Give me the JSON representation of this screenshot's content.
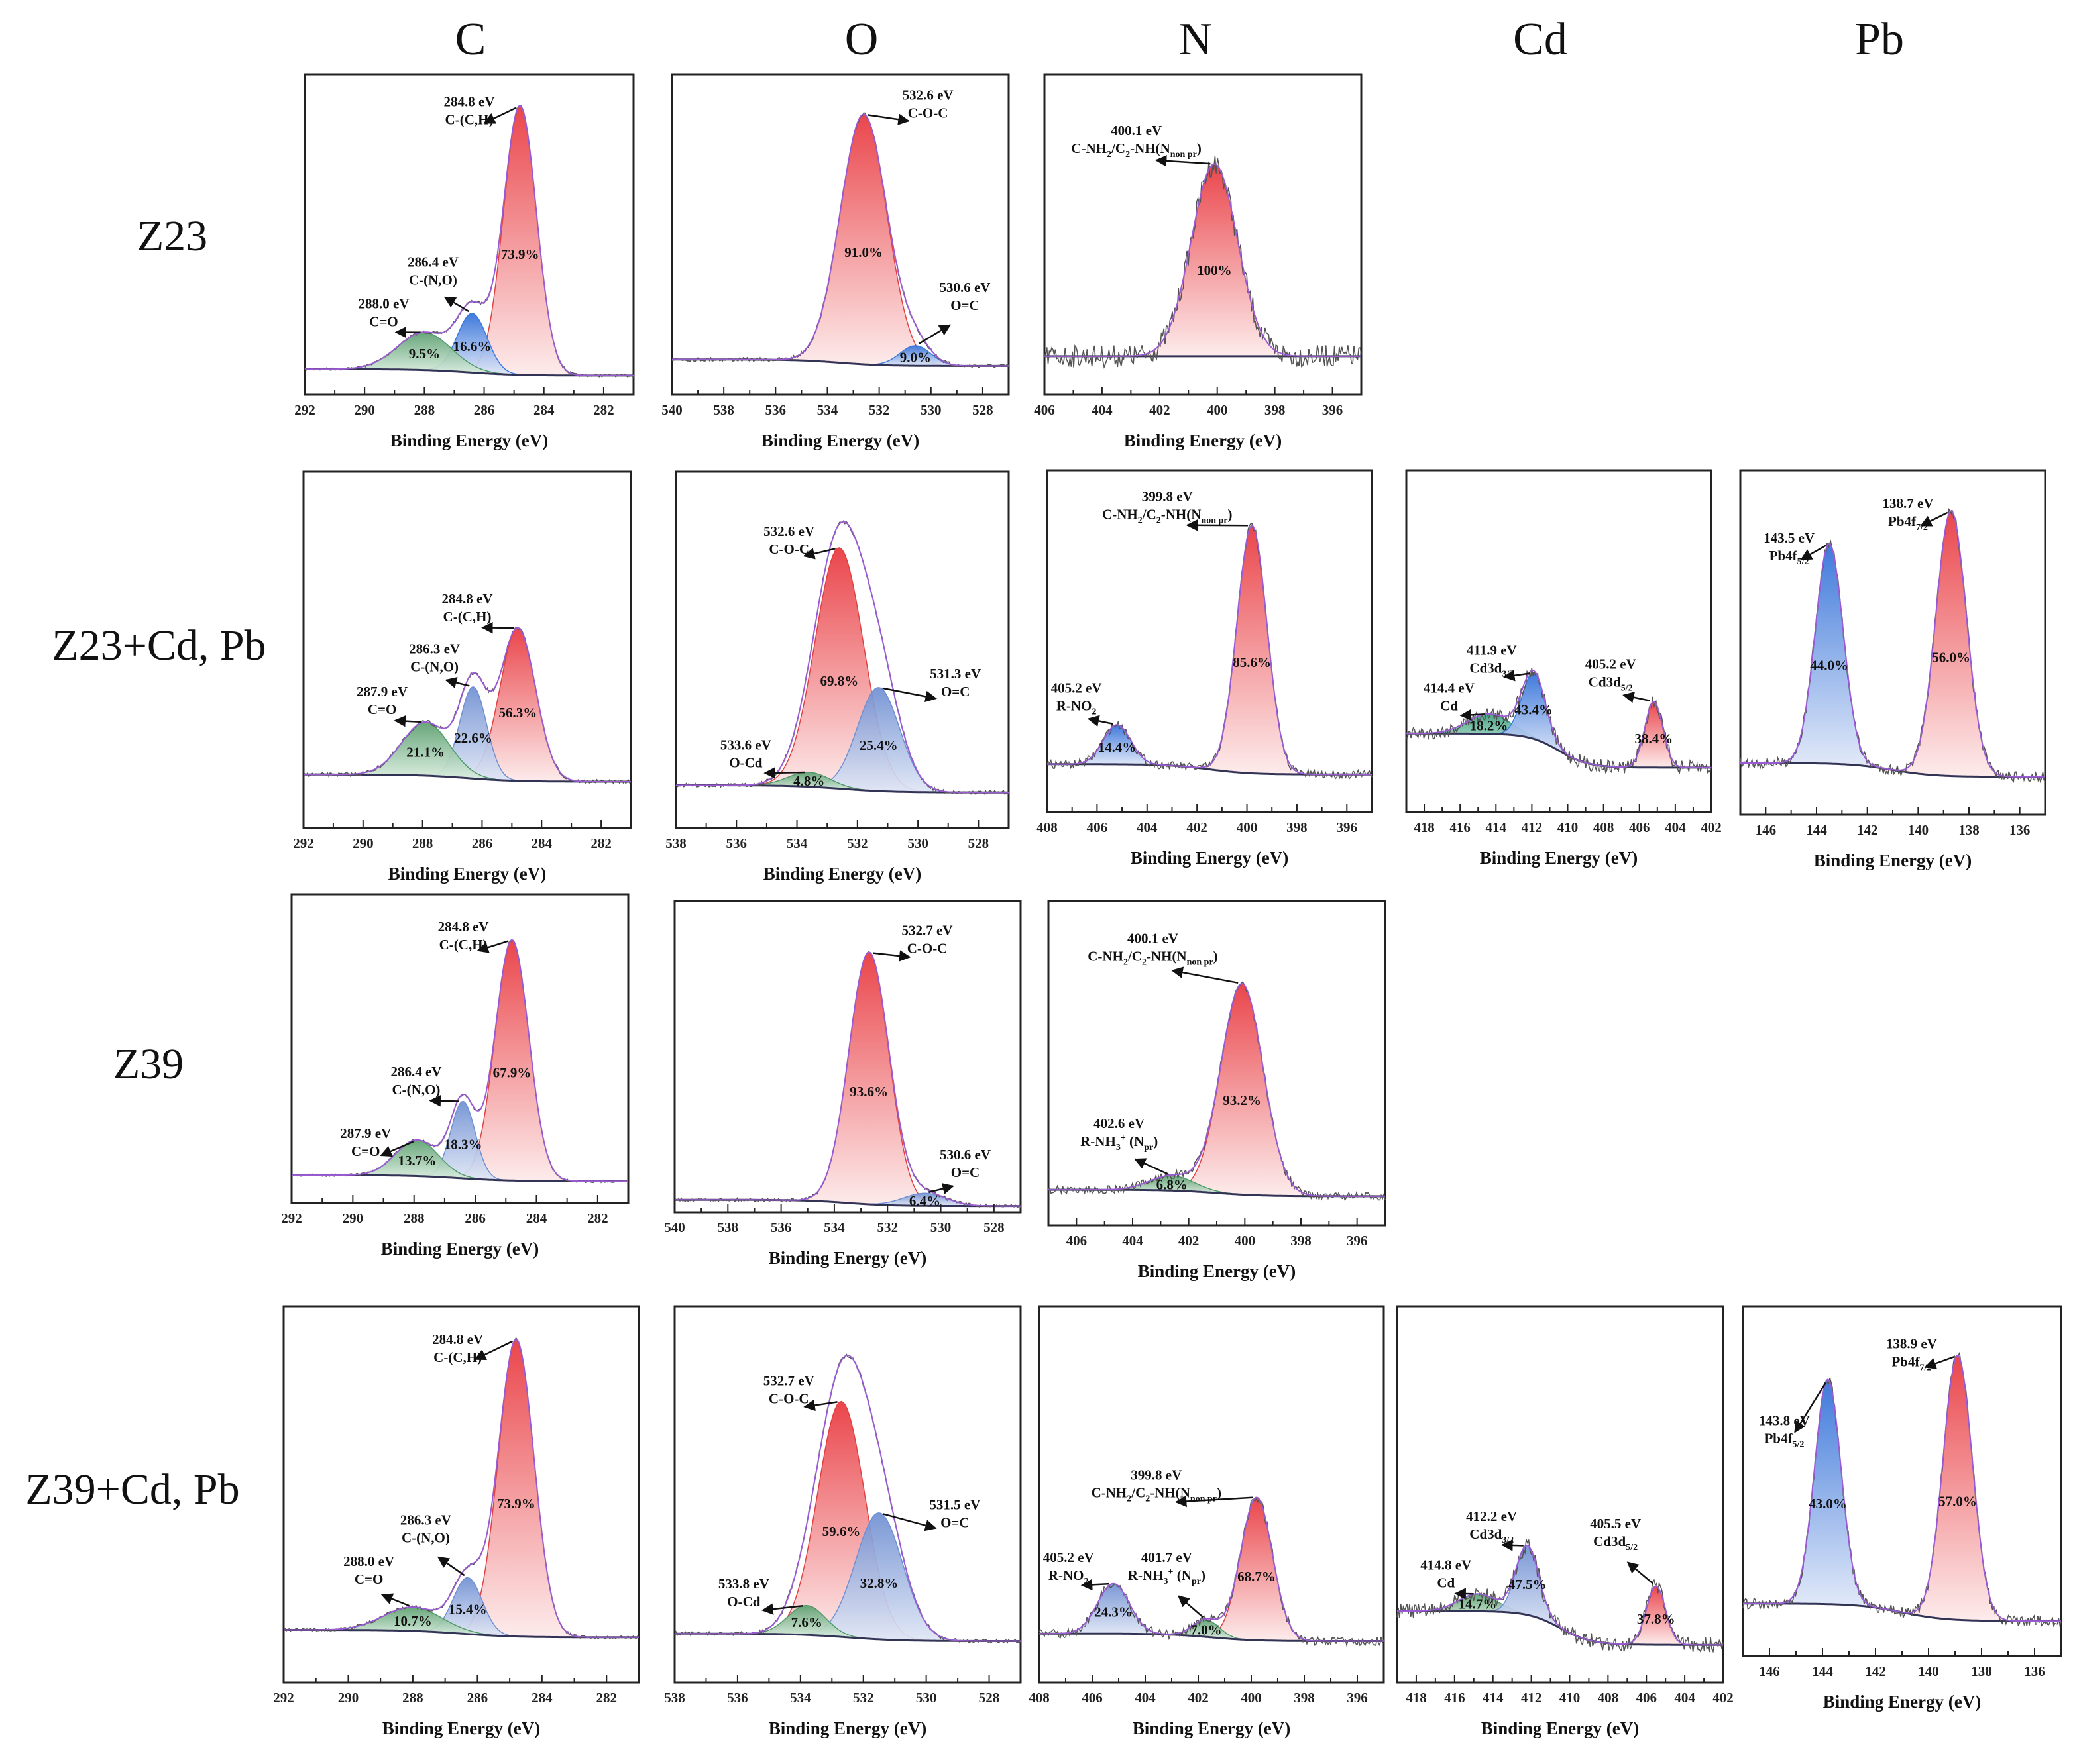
{
  "column_titles": [
    "C",
    "O",
    "N",
    "Cd",
    "Pb"
  ],
  "row_labels": [
    "Z23",
    "Z23+Cd, Pb",
    "Z39",
    "Z39+Cd, Pb"
  ],
  "colors": {
    "red": "#e8363c",
    "blue": "#2f6ed8",
    "lightblue": "#6f8fd2",
    "green": "#5a9e6e",
    "teal": "#3aa07e",
    "envelope": "#9a5bd4",
    "raw": "#555555",
    "background": "#333355"
  },
  "chart_data": [
    {
      "id": "r1C",
      "type": "area",
      "row": "Z23",
      "column": "C",
      "xlabel": "Binding Energy (eV)",
      "xlim": [
        292,
        281
      ],
      "peaks": [
        {
          "center": 284.8,
          "be_label": "284.8 eV",
          "assignment": "C-(C,H)",
          "percent": "73.9%",
          "rel_height": 1.0,
          "sigma": 0.55,
          "color": "red"
        },
        {
          "center": 286.4,
          "be_label": "286.4 eV",
          "assignment": "C-(N,O)",
          "percent": "16.6%",
          "rel_height": 0.22,
          "sigma": 0.5,
          "color": "blue"
        },
        {
          "center": 288.0,
          "be_label": "288.0 eV",
          "assignment": "C=O",
          "percent": "9.5%",
          "rel_height": 0.14,
          "sigma": 0.9,
          "color": "green"
        }
      ]
    },
    {
      "id": "r1O",
      "type": "area",
      "row": "Z23",
      "column": "O",
      "xlabel": "Binding Energy (eV)",
      "xlim": [
        540,
        527
      ],
      "peaks": [
        {
          "center": 532.6,
          "be_label": "532.6 eV",
          "assignment": "C-O-C",
          "percent": "91.0%",
          "rel_height": 1.0,
          "sigma": 0.9,
          "color": "red"
        },
        {
          "center": 530.6,
          "be_label": "530.6 eV",
          "assignment": "O=C",
          "percent": "9.0%",
          "rel_height": 0.08,
          "sigma": 0.6,
          "color": "blue"
        }
      ]
    },
    {
      "id": "r1N",
      "type": "area",
      "row": "Z23",
      "column": "N",
      "xlabel": "Binding Energy (eV)",
      "xlim": [
        406,
        395
      ],
      "peaks": [
        {
          "center": 400.1,
          "be_label": "400.1 eV",
          "assignment": "C-NH_{2}/C_{2}-NH(N_{non pr})",
          "percent": "100%",
          "rel_height": 1.0,
          "sigma": 0.8,
          "color": "red"
        }
      ]
    },
    {
      "id": "r2C",
      "type": "area",
      "row": "Z23+Cd, Pb",
      "column": "C",
      "xlabel": "Binding Energy (eV)",
      "xlim": [
        292,
        281
      ],
      "peaks": [
        {
          "center": 284.8,
          "be_label": "284.8 eV",
          "assignment": "C-(C,H)",
          "percent": "56.3%",
          "rel_height": 1.0,
          "sigma": 0.6,
          "color": "red"
        },
        {
          "center": 286.3,
          "be_label": "286.3 eV",
          "assignment": "C-(N,O)",
          "percent": "22.6%",
          "rel_height": 0.6,
          "sigma": 0.45,
          "color": "lightblue"
        },
        {
          "center": 287.9,
          "be_label": "287.9 eV",
          "assignment": "C=O",
          "percent": "21.1%",
          "rel_height": 0.35,
          "sigma": 0.8,
          "color": "green"
        }
      ]
    },
    {
      "id": "r2O",
      "type": "area",
      "row": "Z23+Cd, Pb",
      "column": "O",
      "xlabel": "Binding Energy (eV)",
      "xlim": [
        538,
        527
      ],
      "peaks": [
        {
          "center": 532.6,
          "be_label": "532.6 eV",
          "assignment": "C-O-C",
          "percent": "69.8%",
          "rel_height": 1.0,
          "sigma": 0.8,
          "color": "red"
        },
        {
          "center": 531.3,
          "be_label": "531.3 eV",
          "assignment": "O=C",
          "percent": "25.4%",
          "rel_height": 0.43,
          "sigma": 0.7,
          "color": "lightblue"
        },
        {
          "center": 533.6,
          "be_label": "533.6 eV",
          "assignment": "O-Cd",
          "percent": "4.8%",
          "rel_height": 0.06,
          "sigma": 0.7,
          "color": "green"
        }
      ]
    },
    {
      "id": "r2N",
      "type": "area",
      "row": "Z23+Cd, Pb",
      "column": "N",
      "xlabel": "Binding Energy (eV)",
      "xlim": [
        408,
        395
      ],
      "peaks": [
        {
          "center": 399.8,
          "be_label": "399.8 eV",
          "assignment": "C-NH_{2}/C_{2}-NH(N_{non pr})",
          "percent": "85.6%",
          "rel_height": 1.0,
          "sigma": 0.6,
          "color": "red"
        },
        {
          "center": 405.2,
          "be_label": "405.2 eV",
          "assignment": "R-NO_{2}",
          "percent": "14.4%",
          "rel_height": 0.16,
          "sigma": 0.55,
          "color": "blue"
        }
      ]
    },
    {
      "id": "r2Cd",
      "type": "area",
      "row": "Z23+Cd, Pb",
      "column": "Cd",
      "xlabel": "Binding Energy (eV)",
      "xlim": [
        419,
        402
      ],
      "peaks": [
        {
          "center": 414.4,
          "be_label": "414.4 eV",
          "assignment": "Cd",
          "percent": "18.2%",
          "rel_height": 0.3,
          "sigma": 1.2,
          "color": "teal"
        },
        {
          "center": 411.9,
          "be_label": "411.9 eV",
          "assignment": "Cd3d_{3/2}",
          "percent": "43.4%",
          "rel_height": 1.0,
          "sigma": 0.65,
          "color": "blue"
        },
        {
          "center": 405.2,
          "be_label": "405.2 eV",
          "assignment": "Cd3d_{5/2}",
          "percent": "38.4%",
          "rel_height": 1.0,
          "sigma": 0.5,
          "color": "red"
        }
      ]
    },
    {
      "id": "r2Pb",
      "type": "area",
      "row": "Z23+Cd, Pb",
      "column": "Pb",
      "xlabel": "Binding Energy (eV)",
      "xlim": [
        147,
        135
      ],
      "peaks": [
        {
          "center": 143.5,
          "be_label": "143.5 eV",
          "assignment": "Pb4f_{5/2}",
          "percent": "44.0%",
          "rel_height": 0.83,
          "sigma": 0.55,
          "color": "blue"
        },
        {
          "center": 138.7,
          "be_label": "138.7 eV",
          "assignment": "Pb4f_{7/2}",
          "percent": "56.0%",
          "rel_height": 1.0,
          "sigma": 0.6,
          "color": "red"
        }
      ]
    },
    {
      "id": "r3C",
      "type": "area",
      "row": "Z39",
      "column": "C",
      "xlabel": "Binding Energy (eV)",
      "xlim": [
        292,
        281
      ],
      "peaks": [
        {
          "center": 284.8,
          "be_label": "284.8 eV",
          "assignment": "C-(C,H)",
          "percent": "67.9%",
          "rel_height": 1.0,
          "sigma": 0.55,
          "color": "red"
        },
        {
          "center": 286.4,
          "be_label": "286.4 eV",
          "assignment": "C-(N,O)",
          "percent": "18.3%",
          "rel_height": 0.32,
          "sigma": 0.4,
          "color": "lightblue"
        },
        {
          "center": 287.9,
          "be_label": "287.9 eV",
          "assignment": "C=O",
          "percent": "13.7%",
          "rel_height": 0.15,
          "sigma": 0.7,
          "color": "green"
        }
      ]
    },
    {
      "id": "r3O",
      "type": "area",
      "row": "Z39",
      "column": "O",
      "xlabel": "Binding Energy (eV)",
      "xlim": [
        540,
        527
      ],
      "peaks": [
        {
          "center": 532.7,
          "be_label": "532.7 eV",
          "assignment": "C-O-C",
          "percent": "93.6%",
          "rel_height": 1.0,
          "sigma": 0.75,
          "color": "red"
        },
        {
          "center": 530.6,
          "be_label": "530.6 eV",
          "assignment": "O=C",
          "percent": "6.4%",
          "rel_height": 0.05,
          "sigma": 0.8,
          "color": "lightblue"
        }
      ]
    },
    {
      "id": "r3N",
      "type": "area",
      "row": "Z39",
      "column": "N",
      "xlabel": "Binding Energy (eV)",
      "xlim": [
        407,
        395
      ],
      "peaks": [
        {
          "center": 400.1,
          "be_label": "400.1 eV",
          "assignment": "C-NH_{2}/C_{2}-NH(N_{non pr})",
          "percent": "93.2%",
          "rel_height": 1.0,
          "sigma": 0.75,
          "color": "red"
        },
        {
          "center": 402.6,
          "be_label": "402.6 eV",
          "assignment": "R-NH_{3}^{+} (N_{pr})",
          "percent": "6.8%",
          "rel_height": 0.07,
          "sigma": 0.8,
          "color": "green"
        }
      ]
    },
    {
      "id": "r4C",
      "type": "area",
      "row": "Z39+Cd, Pb",
      "column": "C",
      "xlabel": "Binding Energy (eV)",
      "xlim": [
        292,
        281
      ],
      "peaks": [
        {
          "center": 284.8,
          "be_label": "284.8 eV",
          "assignment": "C-(C,H)",
          "percent": "73.9%",
          "rel_height": 1.0,
          "sigma": 0.55,
          "color": "red"
        },
        {
          "center": 286.3,
          "be_label": "286.3 eV",
          "assignment": "C-(N,O)",
          "percent": "15.4%",
          "rel_height": 0.19,
          "sigma": 0.45,
          "color": "lightblue"
        },
        {
          "center": 288.0,
          "be_label": "288.0 eV",
          "assignment": "C=O",
          "percent": "10.7%",
          "rel_height": 0.08,
          "sigma": 0.9,
          "color": "green"
        }
      ]
    },
    {
      "id": "r4O",
      "type": "area",
      "row": "Z39+Cd, Pb",
      "column": "O",
      "xlabel": "Binding Energy (eV)",
      "xlim": [
        538,
        527
      ],
      "peaks": [
        {
          "center": 532.7,
          "be_label": "532.7 eV",
          "assignment": "C-O-C",
          "percent": "59.6%",
          "rel_height": 0.8,
          "sigma": 0.75,
          "color": "red"
        },
        {
          "center": 531.5,
          "be_label": "531.5 eV",
          "assignment": "O=C",
          "percent": "32.8%",
          "rel_height": 0.43,
          "sigma": 0.75,
          "color": "lightblue"
        },
        {
          "center": 533.8,
          "be_label": "533.8 eV",
          "assignment": "O-Cd",
          "percent": "7.6%",
          "rel_height": 0.1,
          "sigma": 0.6,
          "color": "green"
        }
      ]
    },
    {
      "id": "r4N",
      "type": "area",
      "row": "Z39+Cd, Pb",
      "column": "N",
      "xlabel": "Binding Energy (eV)",
      "xlim": [
        408,
        395
      ],
      "peaks": [
        {
          "center": 399.8,
          "be_label": "399.8 eV",
          "assignment": "C-NH_{2}/C_{2}-NH(N_{non pr})",
          "percent": "68.7%",
          "rel_height": 1.0,
          "sigma": 0.6,
          "color": "red"
        },
        {
          "center": 405.2,
          "be_label": "405.2 eV",
          "assignment": "R-NO_{2}",
          "percent": "24.3%",
          "rel_height": 0.35,
          "sigma": 0.6,
          "color": "lightblue"
        },
        {
          "center": 401.7,
          "be_label": "401.7 eV",
          "assignment": "R-NH_{3}^{+} (N_{pr})",
          "percent": "7.0%",
          "rel_height": 0.12,
          "sigma": 0.5,
          "color": "green"
        }
      ]
    },
    {
      "id": "r4Cd",
      "type": "area",
      "row": "Z39+Cd, Pb",
      "column": "Cd",
      "xlabel": "Binding Energy (eV)",
      "xlim": [
        419,
        402
      ],
      "peaks": [
        {
          "center": 414.8,
          "be_label": "414.8 eV",
          "assignment": "Cd",
          "percent": "14.7%",
          "rel_height": 0.25,
          "sigma": 1.0,
          "color": "green"
        },
        {
          "center": 412.2,
          "be_label": "412.2 eV",
          "assignment": "Cd3d_{3/2}",
          "percent": "47.5%",
          "rel_height": 1.0,
          "sigma": 0.6,
          "color": "lightblue"
        },
        {
          "center": 405.5,
          "be_label": "405.5 eV",
          "assignment": "Cd3d_{5/2}",
          "percent": "37.8%",
          "rel_height": 0.85,
          "sigma": 0.5,
          "color": "red"
        }
      ]
    },
    {
      "id": "r4Pb",
      "type": "area",
      "row": "Z39+Cd, Pb",
      "column": "Pb",
      "xlabel": "Binding Energy (eV)",
      "xlim": [
        147,
        135
      ],
      "peaks": [
        {
          "center": 143.8,
          "be_label": "143.8 eV",
          "assignment": "Pb4f_{5/2}",
          "percent": "43.0%",
          "rel_height": 0.85,
          "sigma": 0.5,
          "color": "blue"
        },
        {
          "center": 138.9,
          "be_label": "138.9 eV",
          "assignment": "Pb4f_{7/2}",
          "percent": "57.0%",
          "rel_height": 1.0,
          "sigma": 0.55,
          "color": "red"
        }
      ]
    }
  ]
}
